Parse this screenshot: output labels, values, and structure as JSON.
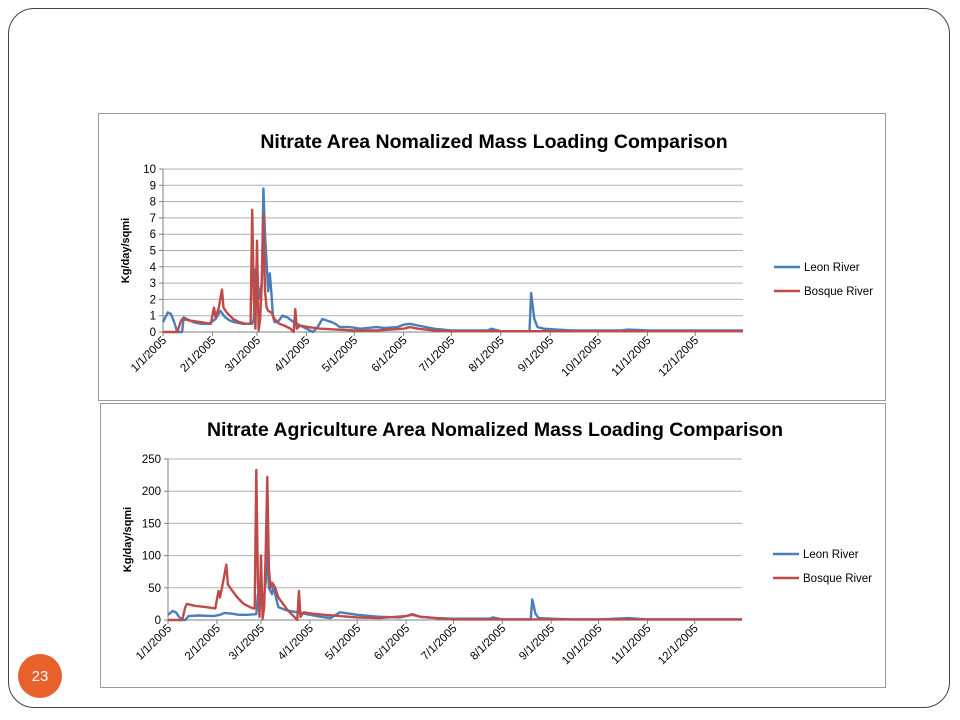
{
  "slide": {
    "number": "23"
  },
  "colors": {
    "leon": "#4a7ebb",
    "bosque": "#be4b48",
    "grid": "#b0b0b0",
    "frame": "#444444",
    "badge": "#e8612b"
  },
  "chart_data": [
    {
      "type": "line",
      "title": "Nitrate Area Nomalized Mass Loading Comparison",
      "xlabel": "",
      "ylabel": "Kg/day/sqmi",
      "ylim": [
        0,
        10
      ],
      "yticks": [
        0,
        1,
        2,
        3,
        4,
        5,
        6,
        7,
        8,
        9,
        10
      ],
      "xlim": [
        "2005-01-01",
        "2005-12-31"
      ],
      "xtick_labels": [
        "1/1/2005",
        "2/1/2005",
        "3/1/2005",
        "4/1/2005",
        "5/1/2005",
        "6/1/2005",
        "7/1/2005",
        "8/1/2005",
        "9/1/2005",
        "10/1/2005",
        "11/1/2005",
        "12/1/2005"
      ],
      "xtick_dates": [
        "2005-01-01",
        "2005-02-01",
        "2005-03-01",
        "2005-04-01",
        "2005-05-01",
        "2005-06-01",
        "2005-07-01",
        "2005-08-01",
        "2005-09-01",
        "2005-10-01",
        "2005-11-01",
        "2005-12-01"
      ],
      "grid": true,
      "legend": "right",
      "series": [
        {
          "name": "Leon River",
          "x": [
            "2005-01-01",
            "2005-01-04",
            "2005-01-06",
            "2005-01-08",
            "2005-01-10",
            "2005-01-12",
            "2005-01-13",
            "2005-01-14",
            "2005-01-16",
            "2005-01-20",
            "2005-01-25",
            "2005-01-30",
            "2005-02-03",
            "2005-02-06",
            "2005-02-09",
            "2005-02-12",
            "2005-02-15",
            "2005-02-20",
            "2005-02-24",
            "2005-02-26",
            "2005-02-27",
            "2005-02-28",
            "2005-03-01",
            "2005-03-02",
            "2005-03-04",
            "2005-03-05",
            "2005-03-06",
            "2005-03-08",
            "2005-03-09",
            "2005-03-10",
            "2005-03-11",
            "2005-03-12",
            "2005-03-14",
            "2005-03-17",
            "2005-03-20",
            "2005-03-24",
            "2005-03-28",
            "2005-04-01",
            "2005-04-05",
            "2005-04-08",
            "2005-04-11",
            "2005-04-14",
            "2005-04-17",
            "2005-04-19",
            "2005-04-22",
            "2005-04-25",
            "2005-04-28",
            "2005-05-05",
            "2005-05-15",
            "2005-05-20",
            "2005-05-28",
            "2005-06-01",
            "2005-06-05",
            "2005-06-10",
            "2005-06-20",
            "2005-07-01",
            "2005-07-15",
            "2005-07-24",
            "2005-07-26",
            "2005-08-01",
            "2005-08-10",
            "2005-08-19",
            "2005-08-20",
            "2005-08-22",
            "2005-08-24",
            "2005-08-28",
            "2005-09-05",
            "2005-09-15",
            "2005-10-01",
            "2005-10-15",
            "2005-10-20",
            "2005-11-01",
            "2005-11-15",
            "2005-12-01",
            "2005-12-15",
            "2005-12-31"
          ],
          "y": [
            0.6,
            1.2,
            1.1,
            0.6,
            0,
            0,
            0,
            0.9,
            0.8,
            0.6,
            0.5,
            0.5,
            0.8,
            1.3,
            0.9,
            0.7,
            0.6,
            0.5,
            0.5,
            0.5,
            0.8,
            3.8,
            4.0,
            2.0,
            3.0,
            8.8,
            6.0,
            2.5,
            3.6,
            2.4,
            1.0,
            0.6,
            0.6,
            1.0,
            0.9,
            0.6,
            0.4,
            0.2,
            0.0,
            0.3,
            0.8,
            0.7,
            0.6,
            0.5,
            0.3,
            0.3,
            0.3,
            0.2,
            0.3,
            0.25,
            0.3,
            0.45,
            0.5,
            0.4,
            0.2,
            0.1,
            0.1,
            0.1,
            0.2,
            0.05,
            0.05,
            0.05,
            2.4,
            0.8,
            0.3,
            0.2,
            0.15,
            0.1,
            0.1,
            0.1,
            0.15,
            0.1,
            0.1,
            0.1,
            0.1,
            0.1
          ]
        },
        {
          "name": "Bosque River",
          "x": [
            "2005-01-01",
            "2005-01-10",
            "2005-01-12",
            "2005-01-13",
            "2005-01-18",
            "2005-01-25",
            "2005-01-31",
            "2005-02-02",
            "2005-02-03",
            "2005-02-05",
            "2005-02-07",
            "2005-02-08",
            "2005-02-10",
            "2005-02-14",
            "2005-02-18",
            "2005-02-22",
            "2005-02-24",
            "2005-02-25",
            "2005-02-26",
            "2005-02-27",
            "2005-02-28",
            "2005-03-01",
            "2005-03-02",
            "2005-03-03",
            "2005-03-04",
            "2005-03-05",
            "2005-03-06",
            "2005-03-07",
            "2005-03-08",
            "2005-03-10",
            "2005-03-12",
            "2005-03-15",
            "2005-03-18",
            "2005-03-22",
            "2005-03-24",
            "2005-03-25",
            "2005-03-26",
            "2005-03-28",
            "2005-04-02",
            "2005-04-10",
            "2005-04-20",
            "2005-05-01",
            "2005-05-15",
            "2005-06-01",
            "2005-06-05",
            "2005-06-10",
            "2005-06-20",
            "2005-07-01",
            "2005-08-01",
            "2005-09-01",
            "2005-10-01",
            "2005-11-01",
            "2005-12-01",
            "2005-12-31"
          ],
          "y": [
            0,
            0,
            0.6,
            0.8,
            0.7,
            0.6,
            0.5,
            1.5,
            0.9,
            1.5,
            2.6,
            1.5,
            1.2,
            0.8,
            0.6,
            0.5,
            0.5,
            0.5,
            7.5,
            2.0,
            0.2,
            5.6,
            0.1,
            0.8,
            3.0,
            7.2,
            2.5,
            1.5,
            1.3,
            1.2,
            0.8,
            0.5,
            0.4,
            0.2,
            0,
            1.4,
            0.2,
            0.4,
            0.3,
            0.2,
            0.15,
            0.1,
            0.1,
            0.2,
            0.3,
            0.2,
            0.1,
            0.05,
            0.05,
            0.05,
            0.05,
            0.05,
            0.05,
            0.05
          ]
        }
      ]
    },
    {
      "type": "line",
      "title": "Nitrate Agriculture Area Nomalized Mass Loading Comparison",
      "xlabel": "",
      "ylabel": "Kg/day/sqmi",
      "ylim": [
        0,
        250
      ],
      "yticks": [
        0,
        50,
        100,
        150,
        200,
        250
      ],
      "xlim": [
        "2005-01-01",
        "2005-12-31"
      ],
      "xtick_labels": [
        "1/1/2005",
        "2/1/2005",
        "3/1/2005",
        "4/1/2005",
        "5/1/2005",
        "6/1/2005",
        "7/1/2005",
        "8/1/2005",
        "9/1/2005",
        "10/1/2005",
        "11/1/2005",
        "12/1/2005"
      ],
      "xtick_dates": [
        "2005-01-01",
        "2005-02-01",
        "2005-03-01",
        "2005-04-01",
        "2005-05-01",
        "2005-06-01",
        "2005-07-01",
        "2005-08-01",
        "2005-09-01",
        "2005-10-01",
        "2005-11-01",
        "2005-12-01"
      ],
      "grid": true,
      "legend": "right",
      "series": [
        {
          "name": "Leon River",
          "x": [
            "2005-01-01",
            "2005-01-04",
            "2005-01-06",
            "2005-01-08",
            "2005-01-10",
            "2005-01-12",
            "2005-01-14",
            "2005-01-20",
            "2005-01-30",
            "2005-02-03",
            "2005-02-06",
            "2005-02-10",
            "2005-02-15",
            "2005-02-20",
            "2005-02-26",
            "2005-02-27",
            "2005-02-28",
            "2005-03-01",
            "2005-03-02",
            "2005-03-04",
            "2005-03-05",
            "2005-03-06",
            "2005-03-08",
            "2005-03-09",
            "2005-03-10",
            "2005-03-12",
            "2005-03-17",
            "2005-03-24",
            "2005-04-01",
            "2005-04-08",
            "2005-04-14",
            "2005-04-20",
            "2005-05-01",
            "2005-05-15",
            "2005-05-28",
            "2005-06-01",
            "2005-06-05",
            "2005-06-10",
            "2005-06-20",
            "2005-07-01",
            "2005-07-24",
            "2005-07-26",
            "2005-08-01",
            "2005-08-19",
            "2005-08-20",
            "2005-08-22",
            "2005-08-24",
            "2005-09-01",
            "2005-09-15",
            "2005-10-01",
            "2005-10-20",
            "2005-11-01",
            "2005-12-01",
            "2005-12-31"
          ],
          "y": [
            8,
            14,
            12,
            5,
            0,
            0,
            6,
            7,
            6,
            8,
            11,
            10,
            8,
            8,
            9,
            40,
            45,
            30,
            20,
            60,
            118,
            50,
            40,
            55,
            40,
            20,
            15,
            12,
            8,
            5,
            3,
            12,
            8,
            5,
            4,
            6,
            8,
            5,
            3,
            2,
            2,
            4,
            1,
            1,
            32,
            10,
            3,
            2,
            1,
            1,
            3,
            1,
            1,
            1
          ]
        },
        {
          "name": "Bosque River",
          "x": [
            "2005-01-01",
            "2005-01-10",
            "2005-01-12",
            "2005-01-13",
            "2005-01-18",
            "2005-01-25",
            "2005-01-31",
            "2005-02-02",
            "2005-02-03",
            "2005-02-05",
            "2005-02-07",
            "2005-02-08",
            "2005-02-10",
            "2005-02-14",
            "2005-02-18",
            "2005-02-22",
            "2005-02-24",
            "2005-02-25",
            "2005-02-26",
            "2005-02-27",
            "2005-02-28",
            "2005-03-01",
            "2005-03-02",
            "2005-03-03",
            "2005-03-04",
            "2005-03-05",
            "2005-03-06",
            "2005-03-07",
            "2005-03-08",
            "2005-03-10",
            "2005-03-12",
            "2005-03-15",
            "2005-03-18",
            "2005-03-22",
            "2005-03-24",
            "2005-03-25",
            "2005-03-26",
            "2005-03-28",
            "2005-04-02",
            "2005-04-10",
            "2005-04-20",
            "2005-05-01",
            "2005-05-15",
            "2005-06-01",
            "2005-06-05",
            "2005-06-10",
            "2005-06-20",
            "2005-07-01",
            "2005-08-01",
            "2005-09-01",
            "2005-10-01",
            "2005-11-01",
            "2005-12-01",
            "2005-12-31"
          ],
          "y": [
            0,
            0,
            20,
            25,
            22,
            20,
            18,
            45,
            35,
            60,
            86,
            55,
            48,
            35,
            25,
            20,
            18,
            18,
            233,
            60,
            5,
            100,
            2,
            20,
            110,
            222,
            80,
            50,
            58,
            50,
            35,
            25,
            15,
            5,
            0,
            45,
            5,
            12,
            10,
            8,
            6,
            4,
            3,
            6,
            9,
            5,
            3,
            1,
            1,
            1,
            1,
            1,
            1,
            1
          ]
        }
      ]
    }
  ]
}
